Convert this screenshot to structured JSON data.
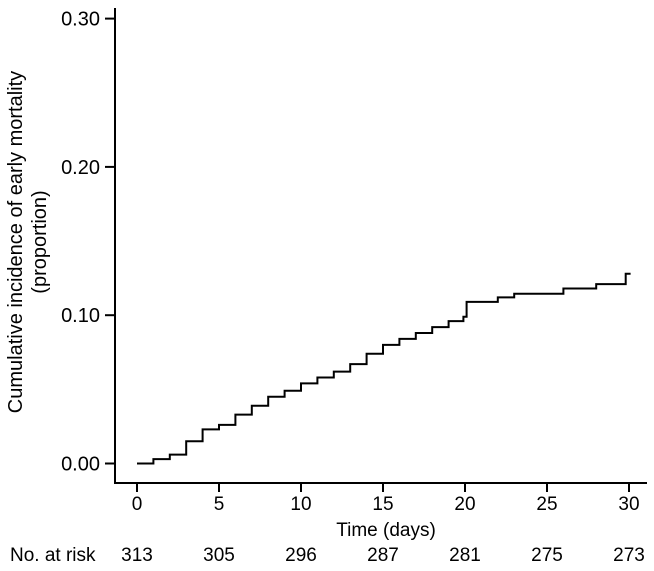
{
  "chart_data": {
    "type": "line",
    "subtype": "step-function-cumulative-incidence",
    "title": "",
    "xlabel": "Time (days)",
    "ylabel_line1": "Cumulative incidence of early mortality",
    "ylabel_line2": "(proportion)",
    "xlim": [
      0,
      30
    ],
    "ylim": [
      0,
      0.3
    ],
    "x_ticks": [
      0,
      5,
      10,
      15,
      20,
      25,
      30
    ],
    "y_ticks": [
      {
        "value": 0.0,
        "label": "0.00"
      },
      {
        "value": 0.1,
        "label": "0.10"
      },
      {
        "value": 0.2,
        "label": "0.20"
      },
      {
        "value": 0.3,
        "label": "0.30"
      }
    ],
    "grid": false,
    "legend": "none",
    "line_color": "#000000",
    "background_color": "#ffffff",
    "series": [
      {
        "name": "cumulative-incidence-of-early-mortality",
        "points": [
          [
            0,
            0.0
          ],
          [
            1,
            0.003
          ],
          [
            2,
            0.006
          ],
          [
            3,
            0.015
          ],
          [
            4,
            0.023
          ],
          [
            5,
            0.026
          ],
          [
            6,
            0.033
          ],
          [
            7,
            0.039
          ],
          [
            8,
            0.045
          ],
          [
            9,
            0.049
          ],
          [
            10,
            0.054
          ],
          [
            11,
            0.058
          ],
          [
            12,
            0.062
          ],
          [
            13,
            0.067
          ],
          [
            14,
            0.074
          ],
          [
            15,
            0.08
          ],
          [
            16,
            0.084
          ],
          [
            17,
            0.088
          ],
          [
            18,
            0.092
          ],
          [
            19,
            0.096
          ],
          [
            19.9,
            0.099
          ],
          [
            20.1,
            0.109
          ],
          [
            22,
            0.112
          ],
          [
            23,
            0.1145
          ],
          [
            26,
            0.118
          ],
          [
            28,
            0.121
          ],
          [
            29.8,
            0.128
          ],
          [
            30.1,
            0.128
          ]
        ]
      }
    ],
    "risk_table": {
      "label": "No. at risk",
      "times": [
        0,
        5,
        10,
        15,
        20,
        25,
        30
      ],
      "values": [
        313,
        305,
        296,
        287,
        281,
        275,
        273
      ]
    }
  }
}
